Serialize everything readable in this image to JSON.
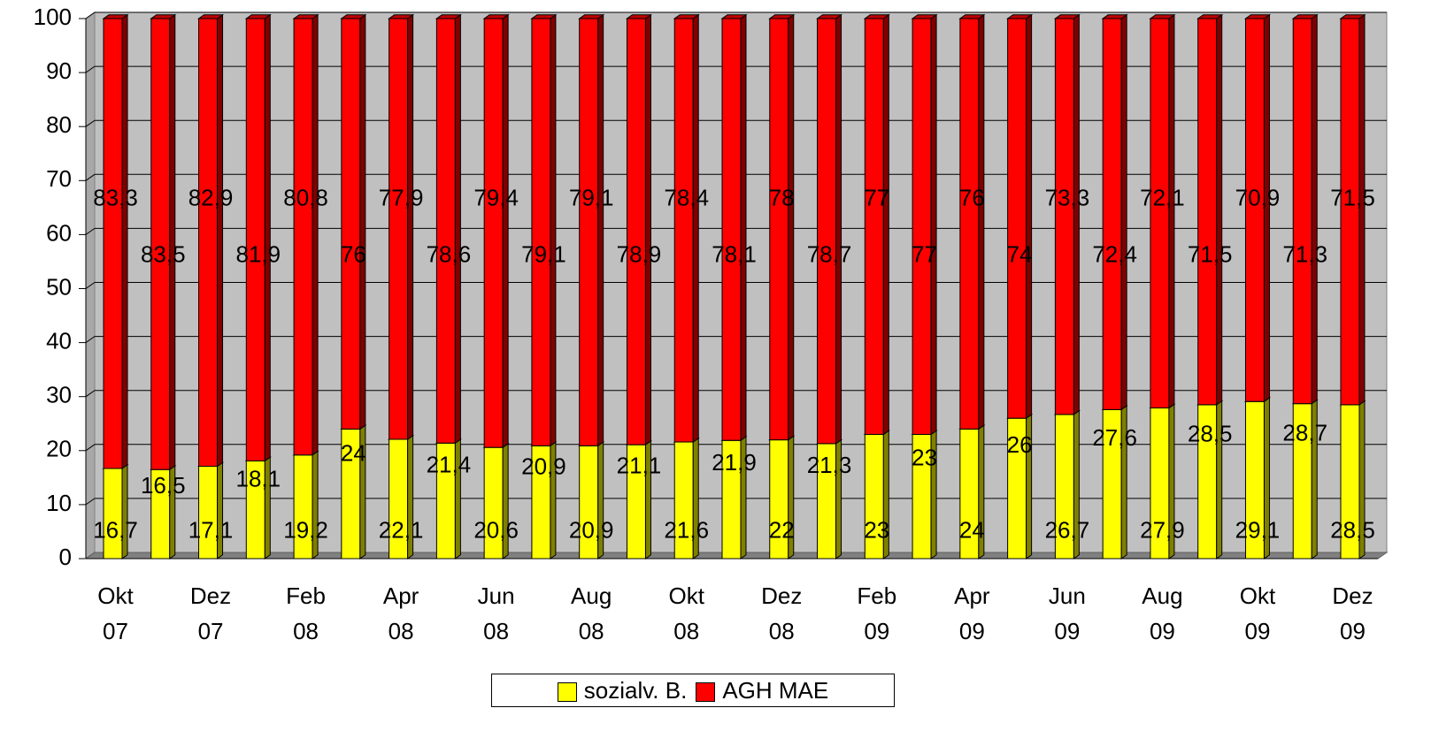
{
  "chart_data": {
    "type": "bar",
    "stacked": true,
    "categories": [
      "Okt 07",
      null,
      "Dez 07",
      null,
      "Feb 08",
      null,
      "Apr 08",
      null,
      "Jun 08",
      null,
      "Aug 08",
      null,
      "Okt 08",
      null,
      "Dez 08",
      null,
      "Feb 09",
      null,
      "Apr 09",
      null,
      "Jun 09",
      null,
      "Aug 09",
      null,
      "Okt 09",
      null,
      "Dez 09"
    ],
    "series": [
      {
        "name": "sozialv. B.",
        "color": "#ffff00",
        "values": [
          16.7,
          16.5,
          17.1,
          18.1,
          19.2,
          24,
          22.1,
          21.4,
          20.6,
          20.9,
          20.9,
          21.1,
          21.6,
          21.9,
          22,
          21.3,
          23,
          23,
          24,
          26,
          26.7,
          27.6,
          27.9,
          28.5,
          29.1,
          28.7,
          28.5
        ],
        "value_labels": [
          "16,7",
          "16,5",
          "17,1",
          "18,1",
          "19,2",
          "24",
          "22,1",
          "21,4",
          "20,6",
          "20,9",
          "20,9",
          "21,1",
          "21,6",
          "21,9",
          "22",
          "21,3",
          "23",
          "23",
          "24",
          "26",
          "26,7",
          "27,6",
          "27,9",
          "28,5",
          "29,1",
          "28,7",
          "28,5"
        ]
      },
      {
        "name": "AGH MAE",
        "color": "#ff0000",
        "values": [
          83.3,
          83.5,
          82.9,
          81.9,
          80.8,
          76,
          77.9,
          78.6,
          79.4,
          79.1,
          79.1,
          78.9,
          78.4,
          78.1,
          78,
          78.7,
          77,
          77,
          76,
          74,
          73.3,
          72.4,
          72.1,
          71.5,
          70.9,
          71.3,
          71.5
        ],
        "value_labels": [
          "83,3",
          "83,5",
          "82,9",
          "81,9",
          "80,8",
          "76",
          "77,9",
          "78,6",
          "79,4",
          "79,1",
          "79,1",
          "78,9",
          "78,4",
          "78,1",
          "78",
          "78,7",
          "77",
          "77",
          "76",
          "74",
          "73,3",
          "72,4",
          "72,1",
          "71,5",
          "70,9",
          "71,3",
          "71,5"
        ]
      }
    ],
    "ylim": [
      0,
      100
    ],
    "yticks": [
      0,
      10,
      20,
      30,
      40,
      50,
      60,
      70,
      80,
      90,
      100
    ],
    "grid": true,
    "legend": "bottom"
  }
}
